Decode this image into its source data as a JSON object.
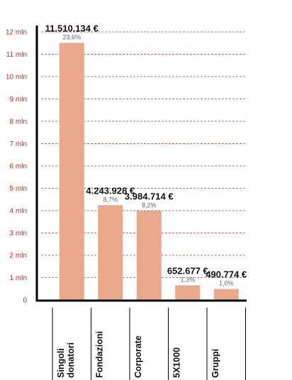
{
  "chart_data": {
    "type": "bar",
    "categories": [
      "Singoli donatori",
      "Fondazioni",
      "Corporate",
      "5X1000",
      "Gruppi"
    ],
    "category_lines": [
      [
        "Singoli",
        "donatori"
      ],
      [
        "Fondazioni"
      ],
      [
        "Corporate"
      ],
      [
        "5X1000"
      ],
      [
        "Gruppi"
      ]
    ],
    "values": [
      11510134,
      4243928,
      3984714,
      652677,
      490774
    ],
    "value_labels": [
      "11.510.134 €",
      "4.243.928 €",
      "3.984.714 €",
      "652.677 €",
      "490.774 €"
    ],
    "percent_labels": [
      "23,6%",
      "8,7%",
      "8,2%",
      "1,3%",
      "1,0%"
    ],
    "ylim": [
      0,
      12000000
    ],
    "yticks": [
      0,
      1000000,
      2000000,
      3000000,
      4000000,
      5000000,
      6000000,
      7000000,
      8000000,
      9000000,
      10000000,
      11000000,
      12000000
    ],
    "ytick_labels": [
      "0",
      "1 mln",
      "2 mln",
      "3 mln",
      "4 mln",
      "5 mln",
      "6 mln",
      "7 mln",
      "8 mln",
      "9 mln",
      "10 mln",
      "11 mln",
      "12 mln"
    ],
    "grid": true,
    "title": "",
    "xlabel": "",
    "ylabel": ""
  },
  "colors": {
    "bar": "#eba98c",
    "grid": "#d46a6a",
    "tick_text": "#c62828",
    "axis": "#000000",
    "value_text": "#111111",
    "percent_text": "#666666"
  }
}
